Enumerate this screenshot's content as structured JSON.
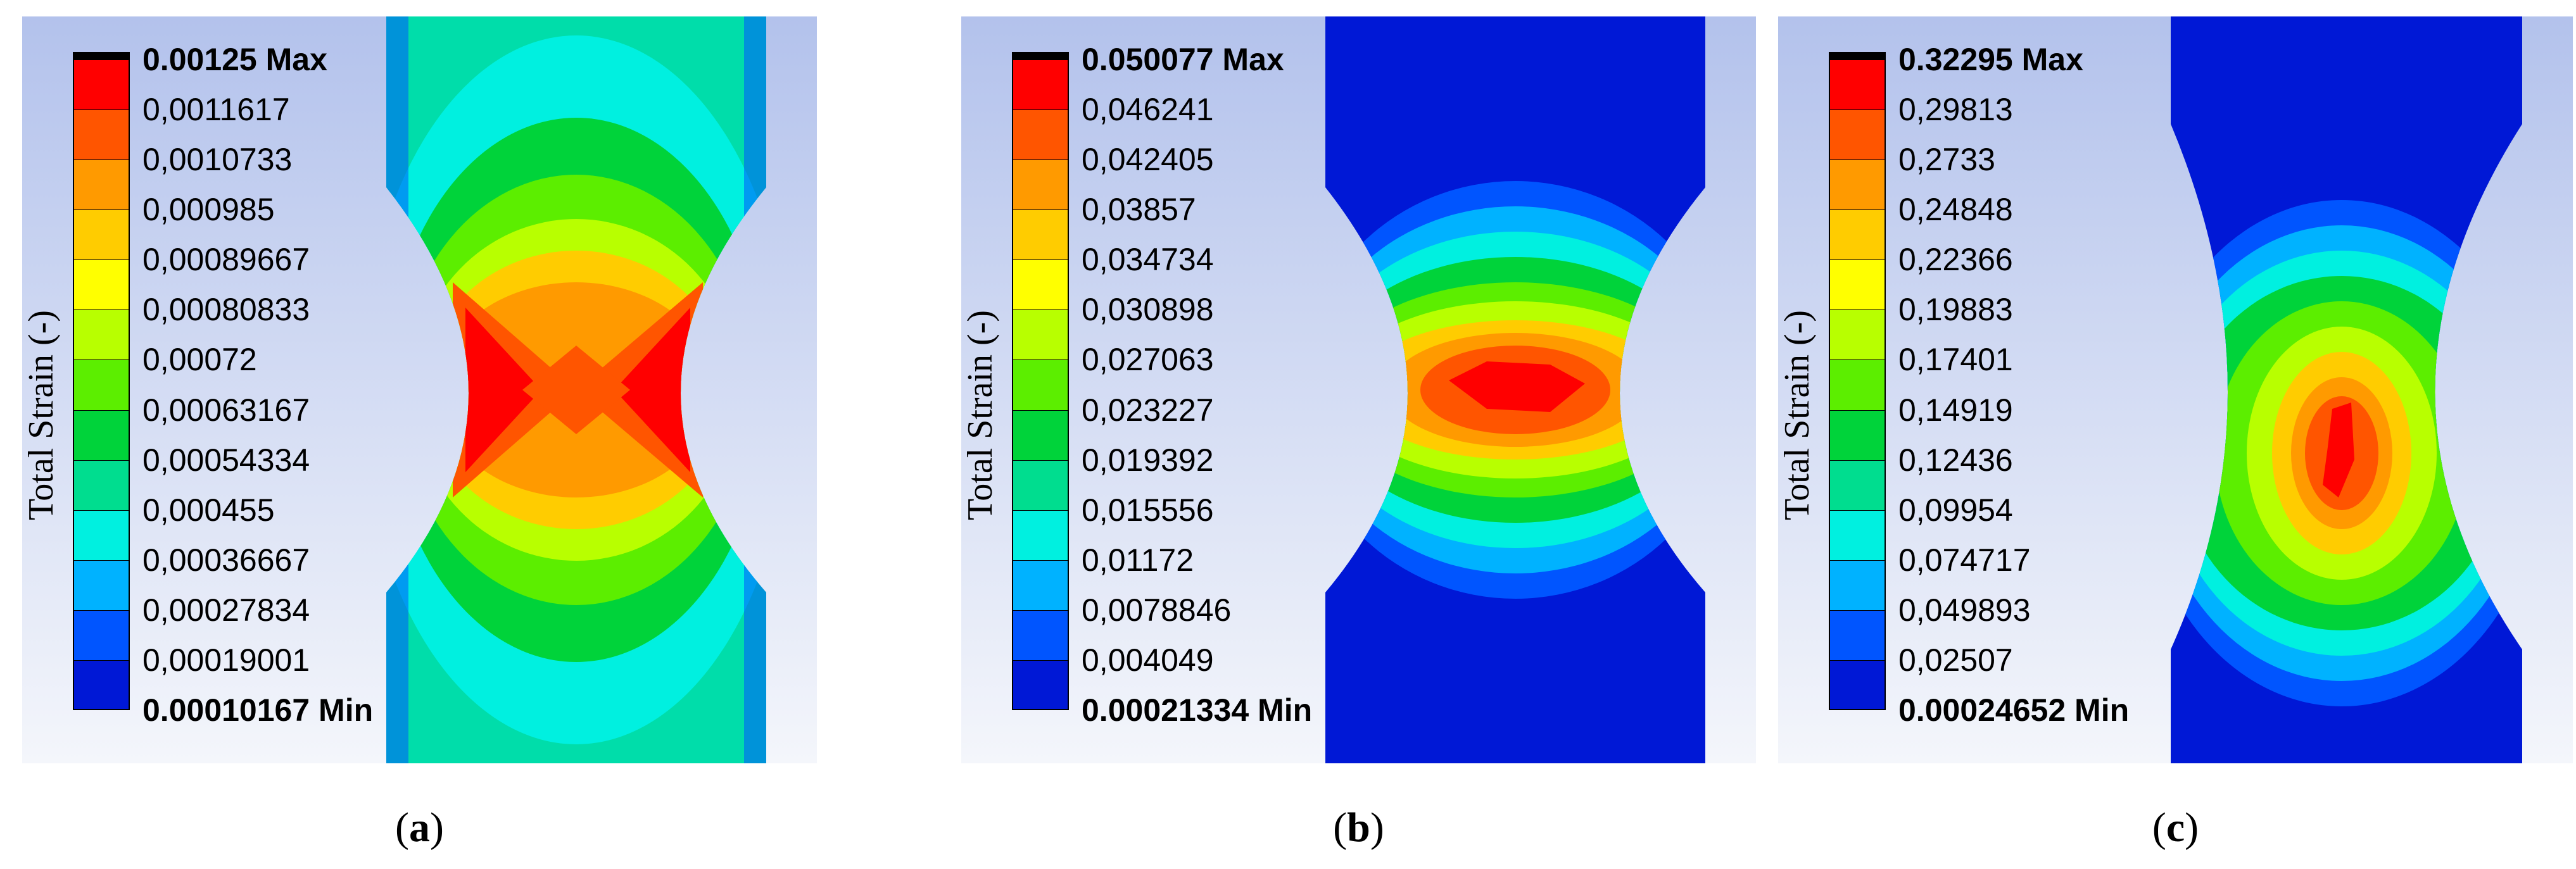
{
  "axis_title": "Total Strain (-)",
  "colors": {
    "scale": [
      "#ff0000",
      "#ff5500",
      "#ff9a00",
      "#ffcc00",
      "#ffff00",
      "#b8ff00",
      "#5cee00",
      "#00d33a",
      "#00dd8f",
      "#00f0e0",
      "#00b2ff",
      "#0055ff",
      "#0018d6"
    ],
    "top_cap": "#000000"
  },
  "panels": [
    {
      "label": "a",
      "ticks": [
        "0.00125 Max",
        "0,0011617",
        "0,0010733",
        "0,000985",
        "0,00089667",
        "0,00080833",
        "0,00072",
        "0,00063167",
        "0,00054334",
        "0,000455",
        "0,00036667",
        "0,00027834",
        "0,00019001",
        "0.00010167 Min"
      ]
    },
    {
      "label": "b",
      "ticks": [
        "0.050077 Max",
        "0,046241",
        "0,042405",
        "0,03857",
        "0,034734",
        "0,030898",
        "0,027063",
        "0,023227",
        "0,019392",
        "0,015556",
        "0,01172",
        "0,0078846",
        "0,004049",
        "0.00021334 Min"
      ]
    },
    {
      "label": "c",
      "ticks": [
        "0.32295 Max",
        "0,29813",
        "0,2733",
        "0,24848",
        "0,22366",
        "0,19883",
        "0,17401",
        "0,14919",
        "0,12436",
        "0,09954",
        "0,074717",
        "0,049893",
        "0,02507",
        "0.00024652 Min"
      ]
    }
  ]
}
